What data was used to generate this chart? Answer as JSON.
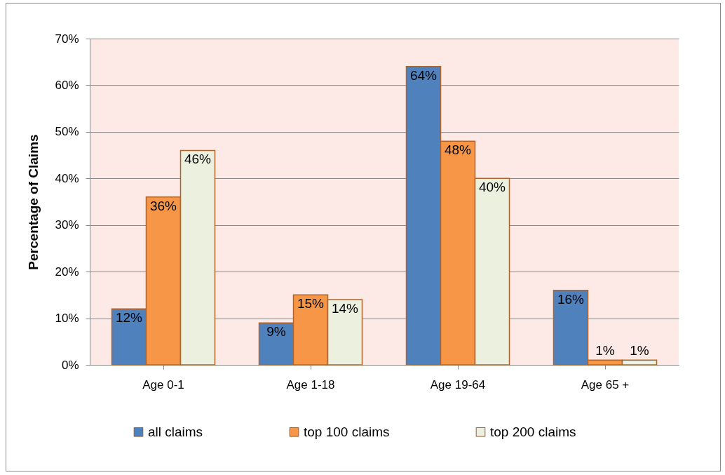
{
  "chart_data": {
    "type": "bar",
    "ylabel": "Percentage of Claims",
    "categories": [
      "Age 0-1",
      "Age 1-18",
      "Age 19-64",
      "Age 65 +"
    ],
    "series": [
      {
        "name": "all claims",
        "color": "#4f81bd",
        "values": [
          12,
          9,
          64,
          16
        ],
        "value_labels": [
          "12%",
          "9%",
          "64%",
          "16%"
        ]
      },
      {
        "name": "top 100 claims",
        "color": "#f79646",
        "values": [
          36,
          15,
          48,
          1
        ],
        "value_labels": [
          "36%",
          "15%",
          "48%",
          "1%"
        ]
      },
      {
        "name": "top 200 claims",
        "color": "#ebf1de",
        "values": [
          46,
          14,
          40,
          1
        ],
        "value_labels": [
          "46%",
          "14%",
          "40%",
          "1%"
        ]
      }
    ],
    "ylim": [
      0,
      70
    ],
    "yticks": [
      {
        "value": 0,
        "label": "0%"
      },
      {
        "value": 10,
        "label": "10%"
      },
      {
        "value": 20,
        "label": "20%"
      },
      {
        "value": 30,
        "label": "30%"
      },
      {
        "value": 40,
        "label": "40%"
      },
      {
        "value": 50,
        "label": "50%"
      },
      {
        "value": 60,
        "label": "60%"
      },
      {
        "value": 70,
        "label": "70%"
      }
    ],
    "grid": "y",
    "legend": "bottom"
  }
}
